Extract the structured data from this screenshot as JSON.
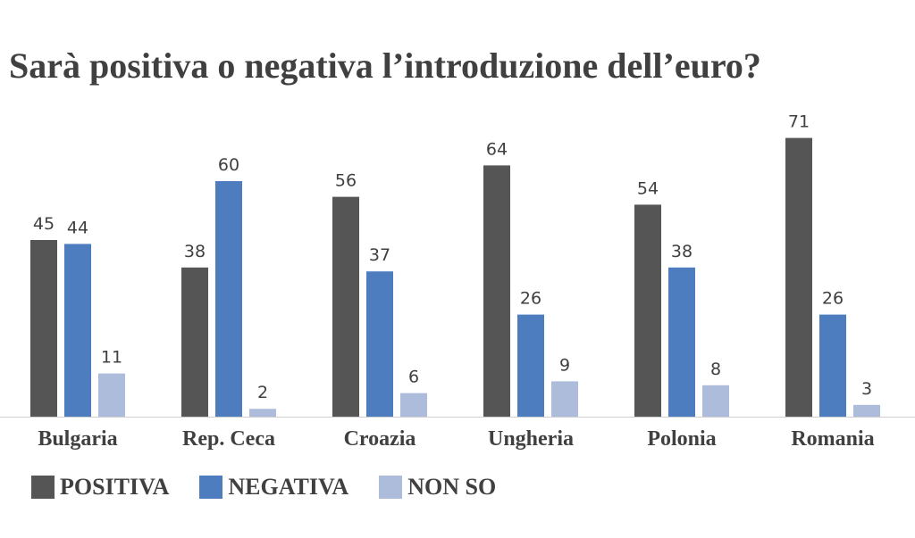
{
  "chart_data": {
    "type": "bar",
    "title": "Sarà positiva o negativa l’introduzione dell’euro?",
    "categories": [
      "Bulgaria",
      "Rep. Ceca",
      "Croazia",
      "Ungheria",
      "Polonia",
      "Romania"
    ],
    "series": [
      {
        "name": "POSITIVA",
        "color": "#555555",
        "values": [
          45,
          38,
          56,
          64,
          54,
          71
        ]
      },
      {
        "name": "NEGATIVA",
        "color": "#4d7dbf",
        "values": [
          44,
          60,
          37,
          26,
          38,
          26
        ]
      },
      {
        "name": "NON SO",
        "color": "#aebcdc",
        "values": [
          11,
          2,
          6,
          9,
          8,
          3
        ]
      }
    ],
    "ylim": [
      0,
      71
    ],
    "grid": false,
    "legend_position": "bottom-left"
  }
}
